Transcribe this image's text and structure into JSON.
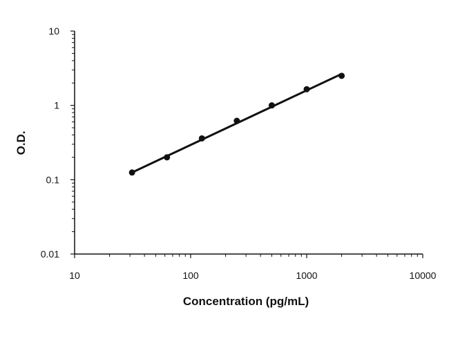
{
  "chart_data": {
    "type": "scatter",
    "title": "",
    "xlabel": "Concentration (pg/mL)",
    "ylabel": "O.D.",
    "xscale": "log",
    "yscale": "log",
    "xlim": [
      10,
      10000
    ],
    "ylim": [
      0.01,
      10
    ],
    "xticks": [
      10,
      100,
      1000,
      10000
    ],
    "xtick_labels": [
      "10",
      "100",
      "1000",
      "10000"
    ],
    "yticks": [
      0.01,
      0.1,
      1,
      10
    ],
    "ytick_labels": [
      "0.01",
      "0.1",
      "1",
      "10"
    ],
    "grid": false,
    "legend": "none",
    "series": [
      {
        "x": [
          31.25,
          62.5,
          125,
          250,
          500,
          1000,
          2000
        ],
        "y": [
          0.125,
          0.2,
          0.36,
          0.62,
          1.0,
          1.65,
          2.5
        ],
        "marker_color": "#111111",
        "fit_line": {
          "x": [
            31.25,
            2000
          ],
          "y": [
            0.125,
            2.65
          ],
          "color": "#111111"
        }
      }
    ]
  }
}
